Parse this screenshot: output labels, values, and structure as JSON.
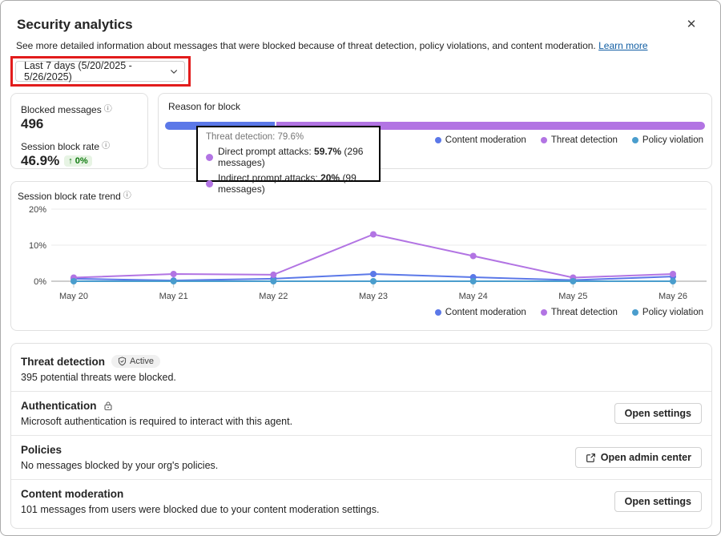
{
  "dialog": {
    "title": "Security analytics",
    "subtitle": "See more detailed information about messages that were blocked because of threat detection, policy violations, and content moderation.",
    "learn_more_label": "Learn more",
    "close_icon": "✕"
  },
  "filter": {
    "selected_range": "Last 7 days (5/20/2025 - 5/26/2025)"
  },
  "annotation": {
    "highlight_color": "#e21c1c"
  },
  "summary": {
    "blocked_messages_label": "Blocked messages",
    "blocked_messages_value": "496",
    "session_block_rate_label": "Session block rate",
    "session_block_rate_value": "46.9%",
    "delta_badge": "↑ 0%"
  },
  "reason_for_block": {
    "title": "Reason for block",
    "tooltip": {
      "header": "Threat detection: 79.6%",
      "items": [
        {
          "label": "Direct prompt attacks:",
          "value": "59.7%",
          "suffix": "(296 messages)"
        },
        {
          "label": "Indirect prompt attacks:",
          "value": "20%",
          "suffix": "(99 messages)"
        }
      ]
    },
    "legend": [
      {
        "label": "Content moderation",
        "color": "#5b78e8"
      },
      {
        "label": "Threat detection",
        "color": "#b274e3"
      },
      {
        "label": "Policy violation",
        "color": "#4a9dcd"
      }
    ]
  },
  "trend": {
    "title": "Session block rate trend",
    "legend": [
      {
        "label": "Content moderation",
        "color": "#5b78e8"
      },
      {
        "label": "Threat detection",
        "color": "#b274e3"
      },
      {
        "label": "Policy violation",
        "color": "#4a9dcd"
      }
    ]
  },
  "sections": [
    {
      "title": "Threat detection",
      "badge": "Active",
      "description": "395 potential threats were blocked."
    },
    {
      "title": "Authentication",
      "description": "Microsoft authentication is required to interact with this agent.",
      "button_label": "Open settings"
    },
    {
      "title": "Policies",
      "description": "No messages blocked by your org's policies.",
      "button_label": "Open admin center"
    },
    {
      "title": "Content moderation",
      "description": "101 messages from users were blocked due to your content moderation settings.",
      "button_label": "Open settings"
    }
  ],
  "chart_data": [
    {
      "id": "reason-for-block",
      "type": "stacked-bar",
      "title": "Reason for block",
      "total_messages": 496,
      "segments": [
        {
          "name": "Content moderation",
          "percent": 20.4,
          "messages": 101,
          "color": "#5b78e8"
        },
        {
          "name": "Threat detection",
          "percent": 79.6,
          "messages": 395,
          "color": "#b274e3"
        },
        {
          "name": "Policy violation",
          "percent": 0,
          "messages": 0,
          "color": "#4a9dcd"
        }
      ],
      "threat_detection_breakdown": [
        {
          "name": "Direct prompt attacks",
          "percent": 59.7,
          "messages": 296
        },
        {
          "name": "Indirect prompt attacks",
          "percent": 20,
          "messages": 99
        }
      ]
    },
    {
      "id": "session-block-rate-trend",
      "type": "line",
      "title": "Session block rate trend",
      "x": [
        "May 20",
        "May 21",
        "May 22",
        "May 23",
        "May 24",
        "May 25",
        "May 26"
      ],
      "ylim": [
        0,
        20
      ],
      "yticks": [
        0,
        10,
        20
      ],
      "ytick_labels": [
        "0%",
        "10%",
        "20%"
      ],
      "series": [
        {
          "name": "Content moderation",
          "color": "#5b78e8",
          "values": [
            0.7,
            0.2,
            0.7,
            2.0,
            1.1,
            0.3,
            1.3
          ]
        },
        {
          "name": "Threat detection",
          "color": "#b274e3",
          "values": [
            1.0,
            2.0,
            1.8,
            13.0,
            7.0,
            1.0,
            2.0
          ]
        },
        {
          "name": "Policy violation",
          "color": "#4a9dcd",
          "values": [
            0,
            0,
            0,
            0,
            0,
            0,
            0
          ]
        }
      ],
      "grid": true,
      "legend_position": "bottom-right"
    }
  ]
}
